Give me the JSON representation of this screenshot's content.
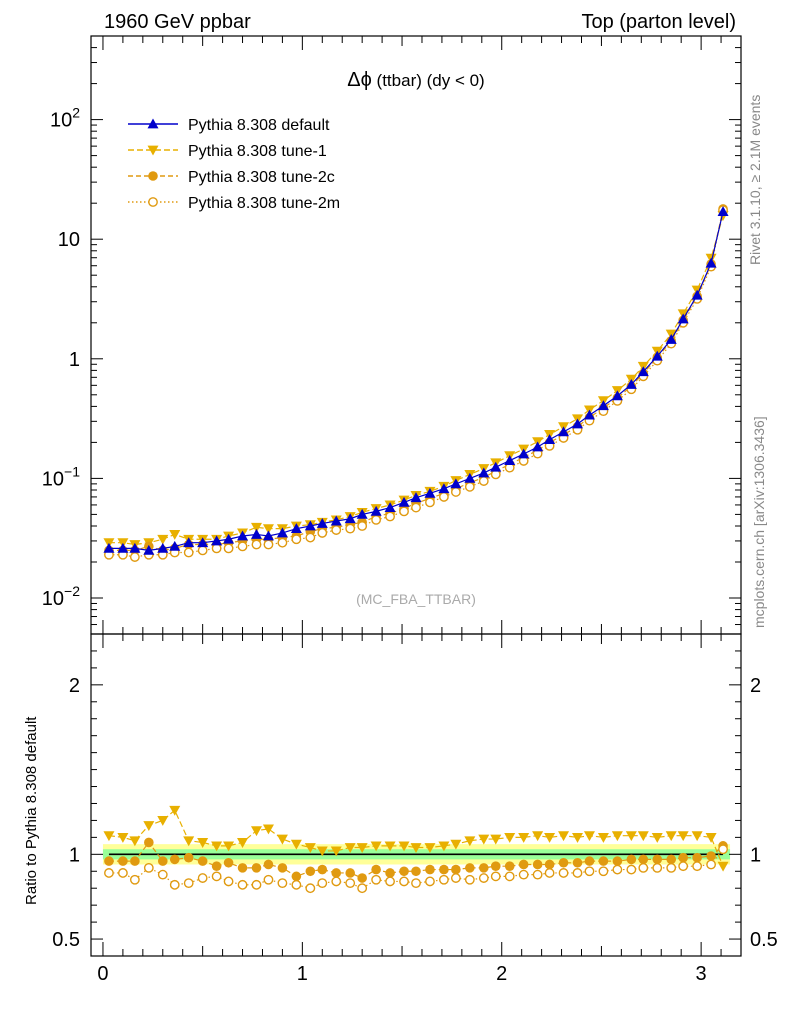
{
  "header": {
    "left": "1960 GeV ppbar",
    "right": "Top (parton level)"
  },
  "side_text": {
    "rivet": "Rivet 3.1.10, ≥ 2.1M events",
    "mcplots": "mcplots.cern.ch [arXiv:1306.3436]"
  },
  "main_panel": {
    "title_symbol": "Δϕ",
    "title_rest": " (ttbar) (dy < 0)",
    "watermark": "(MC_FBA_TTBAR)",
    "y_scale": "log",
    "ylim": [
      0.005,
      500
    ],
    "y_ticks": [
      {
        "value": 0.01,
        "base": "10",
        "exp": "−2"
      },
      {
        "value": 0.1,
        "base": "10",
        "exp": "−1"
      },
      {
        "value": 1,
        "base": "1",
        "exp": ""
      },
      {
        "value": 10,
        "base": "10",
        "exp": ""
      },
      {
        "value": 100,
        "base": "10",
        "exp": "2"
      }
    ]
  },
  "ratio_panel": {
    "ylabel": "Ratio to Pythia 8.308 default",
    "ylim": [
      0.4,
      2.3
    ],
    "y_ticks": [
      {
        "value": 0.5,
        "label": "0.5"
      },
      {
        "value": 1,
        "label": "1"
      },
      {
        "value": 2,
        "label": "2"
      }
    ],
    "band_inner": 0.03,
    "band_outer": 0.06
  },
  "x_axis": {
    "xlim": [
      -0.06,
      3.2
    ],
    "ticks": [
      {
        "value": 0,
        "label": "0"
      },
      {
        "value": 1,
        "label": "1"
      },
      {
        "value": 2,
        "label": "2"
      },
      {
        "value": 3,
        "label": "3"
      }
    ]
  },
  "legend": [
    {
      "label": "Pythia 8.308 default"
    },
    {
      "label": "Pythia 8.308 tune-1"
    },
    {
      "label": "Pythia 8.308 tune-2c"
    },
    {
      "label": "Pythia 8.308 tune-2m"
    }
  ],
  "chart_data": [
    {
      "type": "line",
      "panel": "main",
      "y_scale": "log",
      "x": [
        0.03,
        0.1,
        0.16,
        0.23,
        0.3,
        0.36,
        0.43,
        0.5,
        0.57,
        0.63,
        0.7,
        0.77,
        0.83,
        0.9,
        0.97,
        1.04,
        1.1,
        1.17,
        1.24,
        1.3,
        1.37,
        1.44,
        1.51,
        1.57,
        1.64,
        1.71,
        1.77,
        1.84,
        1.91,
        1.97,
        2.04,
        2.11,
        2.18,
        2.24,
        2.31,
        2.38,
        2.44,
        2.51,
        2.58,
        2.65,
        2.71,
        2.78,
        2.85,
        2.91,
        2.98,
        3.05,
        3.11
      ],
      "series": [
        {
          "name": "Pythia 8.308 default",
          "color": "#0000cc",
          "marker": "triangle-up",
          "values": [
            0.026,
            0.026,
            0.026,
            0.025,
            0.026,
            0.027,
            0.029,
            0.029,
            0.03,
            0.031,
            0.033,
            0.034,
            0.033,
            0.035,
            0.038,
            0.04,
            0.042,
            0.044,
            0.046,
            0.05,
            0.053,
            0.057,
            0.063,
            0.069,
            0.075,
            0.082,
            0.09,
            0.1,
            0.111,
            0.124,
            0.141,
            0.16,
            0.183,
            0.211,
            0.245,
            0.285,
            0.338,
            0.405,
            0.49,
            0.61,
            0.78,
            1.05,
            1.45,
            2.15,
            3.4,
            6.3,
            17.0
          ]
        },
        {
          "name": "Pythia 8.308 tune-1",
          "color": "#e8b000",
          "marker": "triangle-down",
          "values": [
            0.029,
            0.029,
            0.028,
            0.029,
            0.031,
            0.034,
            0.031,
            0.031,
            0.031,
            0.033,
            0.035,
            0.039,
            0.038,
            0.038,
            0.04,
            0.041,
            0.043,
            0.045,
            0.048,
            0.052,
            0.056,
            0.06,
            0.066,
            0.072,
            0.078,
            0.086,
            0.096,
            0.108,
            0.121,
            0.135,
            0.155,
            0.176,
            0.203,
            0.233,
            0.271,
            0.315,
            0.374,
            0.447,
            0.543,
            0.675,
            0.865,
            1.16,
            1.61,
            2.38,
            3.76,
            6.95,
            15.8
          ]
        },
        {
          "name": "Pythia 8.308 tune-2c",
          "color": "#e09a10",
          "marker": "circle",
          "values": [
            0.025,
            0.025,
            0.025,
            0.027,
            0.025,
            0.026,
            0.028,
            0.028,
            0.028,
            0.029,
            0.03,
            0.031,
            0.031,
            0.032,
            0.033,
            0.036,
            0.038,
            0.039,
            0.041,
            0.043,
            0.048,
            0.051,
            0.056,
            0.062,
            0.068,
            0.075,
            0.082,
            0.092,
            0.102,
            0.115,
            0.131,
            0.15,
            0.172,
            0.199,
            0.232,
            0.271,
            0.323,
            0.388,
            0.471,
            0.589,
            0.755,
            1.02,
            1.41,
            2.1,
            3.33,
            6.2,
            17.9
          ]
        },
        {
          "name": "Pythia 8.308 tune-2m",
          "color": "#e09a10",
          "marker": "circle-open",
          "values": [
            0.023,
            0.023,
            0.022,
            0.023,
            0.023,
            0.024,
            0.024,
            0.025,
            0.026,
            0.026,
            0.027,
            0.028,
            0.028,
            0.029,
            0.031,
            0.032,
            0.035,
            0.037,
            0.038,
            0.04,
            0.045,
            0.048,
            0.053,
            0.057,
            0.063,
            0.07,
            0.077,
            0.085,
            0.095,
            0.108,
            0.123,
            0.14,
            0.161,
            0.187,
            0.218,
            0.255,
            0.304,
            0.365,
            0.445,
            0.556,
            0.714,
            0.965,
            1.34,
            2.0,
            3.17,
            5.9,
            17.5
          ]
        }
      ]
    },
    {
      "type": "line",
      "panel": "ratio",
      "ylabel": "Ratio to Pythia 8.308 default",
      "x": [
        0.03,
        0.1,
        0.16,
        0.23,
        0.3,
        0.36,
        0.43,
        0.5,
        0.57,
        0.63,
        0.7,
        0.77,
        0.83,
        0.9,
        0.97,
        1.04,
        1.1,
        1.17,
        1.24,
        1.3,
        1.37,
        1.44,
        1.51,
        1.57,
        1.64,
        1.71,
        1.77,
        1.84,
        1.91,
        1.97,
        2.04,
        2.11,
        2.18,
        2.24,
        2.31,
        2.38,
        2.44,
        2.51,
        2.58,
        2.65,
        2.71,
        2.78,
        2.85,
        2.91,
        2.98,
        3.05,
        3.11
      ],
      "series": [
        {
          "name": "Pythia 8.308 default",
          "color": "#000000",
          "values": [
            1,
            1,
            1,
            1,
            1,
            1,
            1,
            1,
            1,
            1,
            1,
            1,
            1,
            1,
            1,
            1,
            1,
            1,
            1,
            1,
            1,
            1,
            1,
            1,
            1,
            1,
            1,
            1,
            1,
            1,
            1,
            1,
            1,
            1,
            1,
            1,
            1,
            1,
            1,
            1,
            1,
            1,
            1,
            1,
            1,
            1,
            1
          ]
        },
        {
          "name": "Pythia 8.308 tune-1",
          "color": "#e8b000",
          "marker": "triangle-down",
          "values": [
            1.11,
            1.1,
            1.08,
            1.17,
            1.2,
            1.26,
            1.08,
            1.07,
            1.05,
            1.05,
            1.07,
            1.14,
            1.15,
            1.09,
            1.06,
            1.04,
            1.02,
            1.02,
            1.04,
            1.04,
            1.05,
            1.05,
            1.05,
            1.04,
            1.04,
            1.05,
            1.06,
            1.08,
            1.09,
            1.09,
            1.1,
            1.1,
            1.11,
            1.1,
            1.11,
            1.1,
            1.11,
            1.1,
            1.11,
            1.11,
            1.11,
            1.1,
            1.11,
            1.11,
            1.11,
            1.1,
            0.93
          ]
        },
        {
          "name": "Pythia 8.308 tune-2c",
          "color": "#e09a10",
          "marker": "circle",
          "values": [
            0.96,
            0.96,
            0.96,
            1.07,
            0.96,
            0.97,
            0.98,
            0.96,
            0.93,
            0.95,
            0.92,
            0.92,
            0.94,
            0.92,
            0.87,
            0.9,
            0.91,
            0.89,
            0.89,
            0.86,
            0.91,
            0.89,
            0.9,
            0.9,
            0.91,
            0.91,
            0.91,
            0.92,
            0.92,
            0.93,
            0.93,
            0.94,
            0.94,
            0.94,
            0.95,
            0.95,
            0.96,
            0.96,
            0.96,
            0.97,
            0.97,
            0.97,
            0.97,
            0.98,
            0.98,
            0.99,
            1.05
          ]
        },
        {
          "name": "Pythia 8.308 tune-2m",
          "color": "#e09a10",
          "marker": "circle-open",
          "values": [
            0.89,
            0.89,
            0.85,
            0.92,
            0.88,
            0.82,
            0.83,
            0.86,
            0.87,
            0.84,
            0.82,
            0.82,
            0.85,
            0.83,
            0.82,
            0.8,
            0.83,
            0.84,
            0.83,
            0.8,
            0.85,
            0.84,
            0.84,
            0.83,
            0.84,
            0.85,
            0.86,
            0.85,
            0.86,
            0.87,
            0.87,
            0.88,
            0.88,
            0.89,
            0.89,
            0.89,
            0.9,
            0.9,
            0.91,
            0.91,
            0.92,
            0.92,
            0.92,
            0.93,
            0.93,
            0.94,
            1.03
          ]
        }
      ]
    }
  ]
}
